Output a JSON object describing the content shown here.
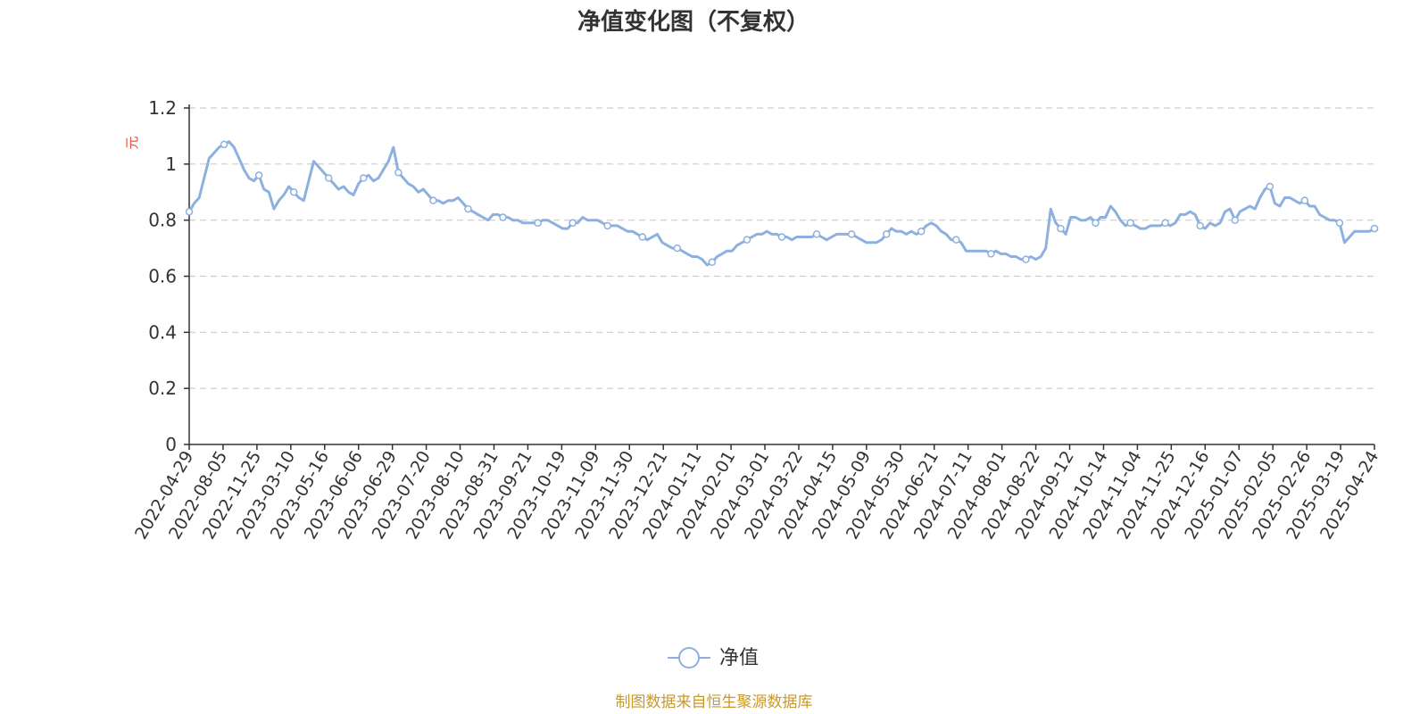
{
  "chart_data": {
    "type": "line",
    "title": "净值变化图（不复权）",
    "ylabel": "元",
    "ylim": [
      0,
      1.2
    ],
    "yticks": [
      "0",
      "0.2",
      "0.4",
      "0.6",
      "0.8",
      "1",
      "1.2"
    ],
    "ytick_values": [
      0,
      0.2,
      0.4,
      0.6,
      0.8,
      1.0,
      1.2
    ],
    "grid": true,
    "legend_position": "bottom-center",
    "x_ticks": [
      "2022-04-29",
      "2022-08-05",
      "2022-11-25",
      "2023-03-10",
      "2023-05-16",
      "2023-06-06",
      "2023-06-29",
      "2023-07-20",
      "2023-08-10",
      "2023-08-31",
      "2023-09-21",
      "2023-10-19",
      "2023-11-09",
      "2023-11-30",
      "2023-12-21",
      "2024-01-11",
      "2024-02-01",
      "2024-03-01",
      "2024-03-22",
      "2024-04-15",
      "2024-05-09",
      "2024-05-30",
      "2024-06-21",
      "2024-07-11",
      "2024-08-01",
      "2024-08-22",
      "2024-09-12",
      "2024-10-14",
      "2024-11-04",
      "2024-11-25",
      "2024-12-16",
      "2025-01-07",
      "2025-02-05",
      "2025-02-26",
      "2025-03-19",
      "2025-04-24"
    ],
    "series": [
      {
        "name": "净值",
        "color": "#8eb0de",
        "values": [
          0.83,
          0.86,
          0.88,
          0.95,
          1.02,
          1.04,
          1.06,
          1.07,
          1.08,
          1.06,
          1.02,
          0.98,
          0.95,
          0.94,
          0.96,
          0.91,
          0.9,
          0.84,
          0.87,
          0.89,
          0.92,
          0.9,
          0.88,
          0.87,
          0.94,
          1.01,
          0.99,
          0.97,
          0.95,
          0.93,
          0.91,
          0.92,
          0.9,
          0.89,
          0.93,
          0.95,
          0.96,
          0.94,
          0.95,
          0.98,
          1.01,
          1.06,
          0.97,
          0.95,
          0.93,
          0.92,
          0.9,
          0.91,
          0.89,
          0.87,
          0.87,
          0.86,
          0.87,
          0.87,
          0.88,
          0.86,
          0.84,
          0.83,
          0.82,
          0.81,
          0.8,
          0.82,
          0.82,
          0.81,
          0.81,
          0.8,
          0.8,
          0.79,
          0.79,
          0.79,
          0.79,
          0.8,
          0.8,
          0.79,
          0.78,
          0.77,
          0.77,
          0.79,
          0.79,
          0.81,
          0.8,
          0.8,
          0.8,
          0.79,
          0.78,
          0.78,
          0.78,
          0.77,
          0.76,
          0.76,
          0.75,
          0.74,
          0.73,
          0.74,
          0.75,
          0.72,
          0.71,
          0.7,
          0.7,
          0.69,
          0.68,
          0.67,
          0.67,
          0.66,
          0.64,
          0.65,
          0.67,
          0.68,
          0.69,
          0.69,
          0.71,
          0.72,
          0.73,
          0.74,
          0.75,
          0.75,
          0.76,
          0.75,
          0.75,
          0.74,
          0.74,
          0.73,
          0.74,
          0.74,
          0.74,
          0.74,
          0.75,
          0.74,
          0.73,
          0.74,
          0.75,
          0.75,
          0.75,
          0.75,
          0.74,
          0.73,
          0.72,
          0.72,
          0.72,
          0.73,
          0.75,
          0.77,
          0.76,
          0.76,
          0.75,
          0.76,
          0.75,
          0.76,
          0.78,
          0.79,
          0.78,
          0.76,
          0.75,
          0.73,
          0.73,
          0.72,
          0.69,
          0.69,
          0.69,
          0.69,
          0.69,
          0.68,
          0.69,
          0.68,
          0.68,
          0.67,
          0.67,
          0.66,
          0.66,
          0.67,
          0.66,
          0.67,
          0.7,
          0.84,
          0.79,
          0.77,
          0.75,
          0.81,
          0.81,
          0.8,
          0.8,
          0.81,
          0.79,
          0.81,
          0.81,
          0.85,
          0.83,
          0.8,
          0.78,
          0.79,
          0.78,
          0.77,
          0.77,
          0.78,
          0.78,
          0.78,
          0.79,
          0.78,
          0.79,
          0.82,
          0.82,
          0.83,
          0.82,
          0.78,
          0.77,
          0.79,
          0.78,
          0.79,
          0.83,
          0.84,
          0.8,
          0.83,
          0.84,
          0.85,
          0.84,
          0.88,
          0.91,
          0.92,
          0.86,
          0.85,
          0.88,
          0.88,
          0.87,
          0.86,
          0.87,
          0.85,
          0.85,
          0.82,
          0.81,
          0.8,
          0.8,
          0.79,
          0.72,
          0.74,
          0.76,
          0.76,
          0.76,
          0.76,
          0.77
        ]
      }
    ]
  },
  "source_note": "制图数据来自恒生聚源数据库",
  "colors": {
    "line": "#8eb0de",
    "source": "#c79a2a",
    "ylabel": "#e74c3c",
    "grid": "#cccccc",
    "axis": "#333333"
  }
}
